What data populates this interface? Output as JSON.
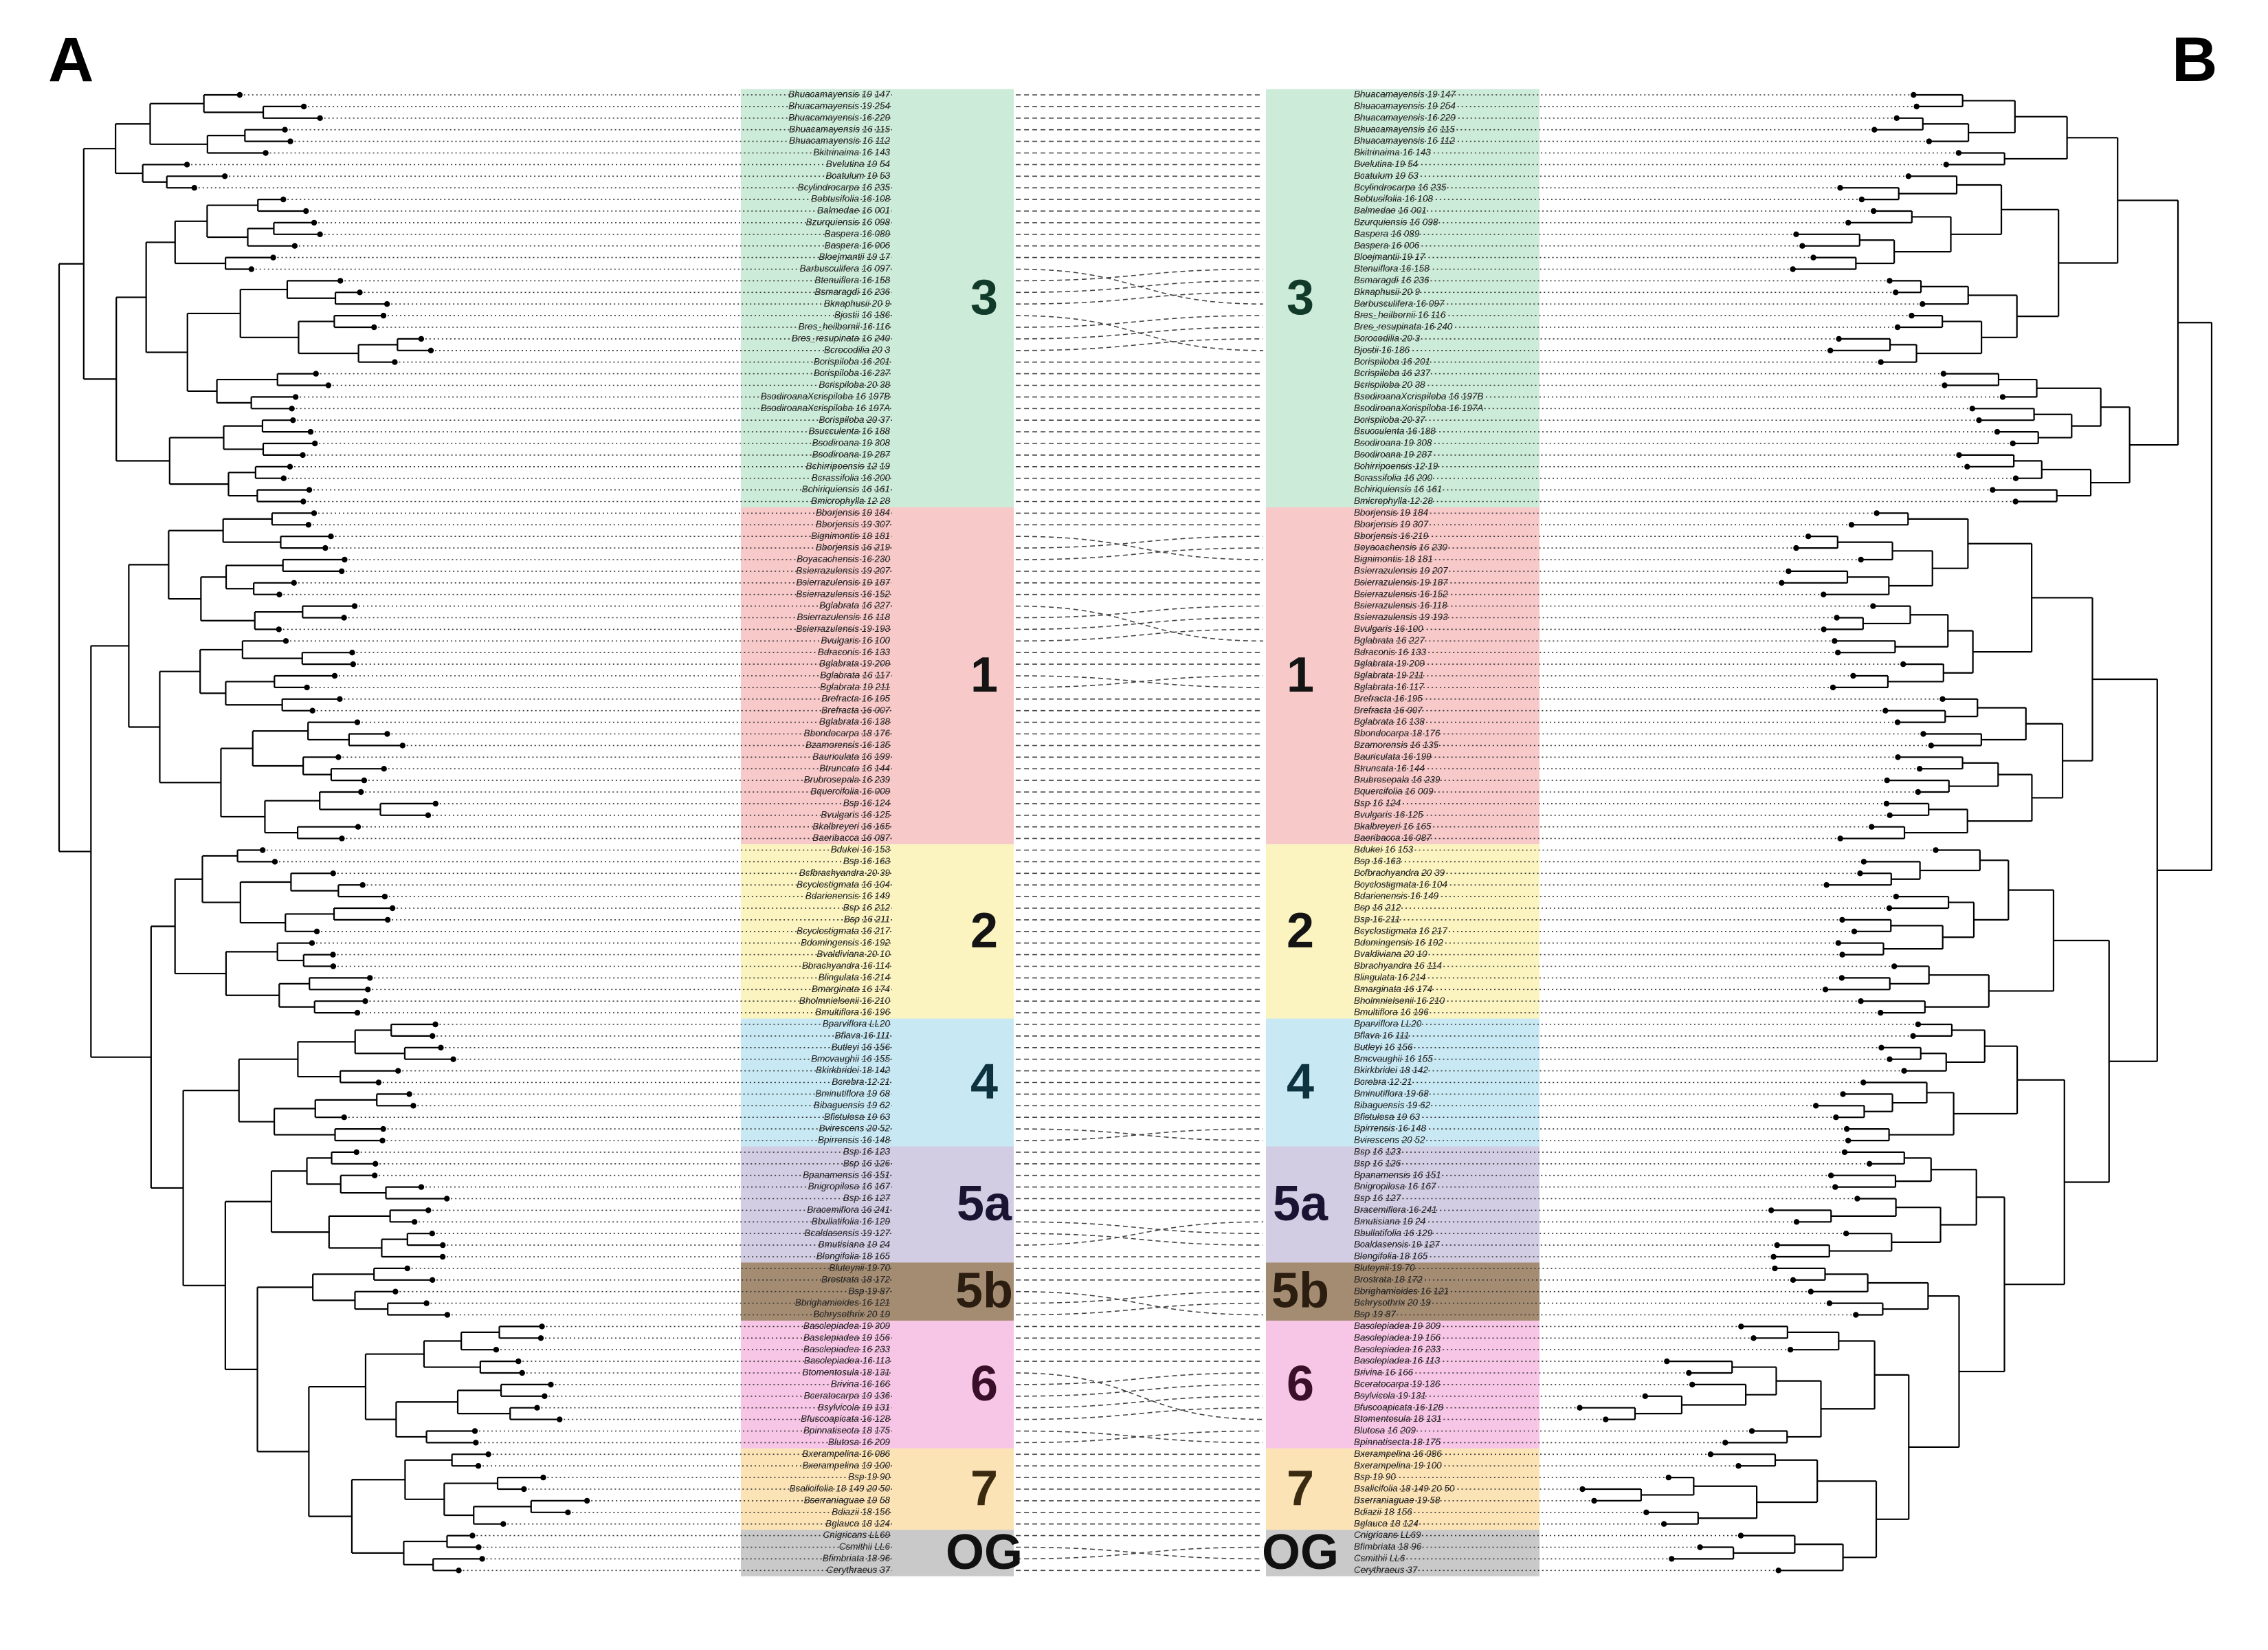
{
  "panels": {
    "left_letter": "A",
    "right_letter": "B"
  },
  "clades": [
    {
      "label": "3",
      "color": "#cdebd9",
      "text_color": "#123a2a"
    },
    {
      "label": "1",
      "color": "#f7c9c9",
      "text_color": "#141414"
    },
    {
      "label": "2",
      "color": "#fbf4c0",
      "text_color": "#141414"
    },
    {
      "label": "4",
      "color": "#c8e9f4",
      "text_color": "#0d3340"
    },
    {
      "label": "5a",
      "color": "#d3cde4",
      "text_color": "#1a1433"
    },
    {
      "label": "5b",
      "color": "#a48c72",
      "text_color": "#2b1d10"
    },
    {
      "label": "6",
      "color": "#f7c6e6",
      "text_color": "#3a0f2a"
    },
    {
      "label": "7",
      "color": "#fbe3b6",
      "text_color": "#3a2a10"
    },
    {
      "label": "OG",
      "color": "#c9c9c9",
      "text_color": "#111111"
    }
  ],
  "left_taxa": [
    [
      "Bhuacamayensis 19 147",
      "Bhuacamayensis 19 254",
      "Bhuacamayensis 16 229",
      "Bhuacamayensis 16 115",
      "Bhuacamayensis 16 112",
      "Bkitrinaima 16 143",
      "Bvelutina 19 54",
      "Bcatulum 19 53",
      "Bcylindrocarpa 16 235",
      "Bobtusifolia 16 108",
      "Balmedae 16 001",
      "Bzurquiensis 16 098",
      "Baspera 16 089",
      "Baspera 16 006",
      "Bloejmantii 19 17",
      "Barbusculifera 16 097",
      "Btenuiflora 16 158",
      "Bsmaragdi 16 236",
      "Bknaphusii 20 9",
      "Bjostii 16 186",
      "Bres_heilbornii 16 116",
      "Bres_resupinata 16 240",
      "Bcrocodilia 20 3",
      "Bcrispiloba 16 201",
      "Bcrispiloba 16 237",
      "Bcrispiloba 20 38",
      "BsodiroanaXcrispiloba 16 197B",
      "BsodiroanaXcrispiloba 16 197A",
      "Bcrispiloba 20 37",
      "Bsucculenta 16 188",
      "Bsodiroana 19 308",
      "Bsodiroana 19 287",
      "Bchirripoensis 12 19",
      "Bcrassifolia 16 200",
      "Bchiriquiensis 16 161",
      "Bmicrophylla 12 28"
    ],
    [
      "Bborjensis 19 184",
      "Bborjensis 19 307",
      "Bignimontis 18 181",
      "Bborjensis 16 219",
      "Boyacachensis 16 230",
      "Bsierrazulensis 19 207",
      "Bsierrazulensis 19 187",
      "Bsierrazulensis 16 152",
      "Bglabrata 16 227",
      "Bsierrazulensis 16 118",
      "Bsierrazulensis 19 193",
      "Bvulgaris 16 100",
      "Bdraconis 16 133",
      "Bglabrata 19 209",
      "Bglabrata 16 117",
      "Bglabrata 19 211",
      "Brefracta 16 195",
      "Brefracta 16 007",
      "Bglabrata 16 138",
      "Bbondocarpa 18 176",
      "Bzamorensis 16 135",
      "Bauriculata 16 199",
      "Btruncata 16 144",
      "Brubrosepala 16 239",
      "Bquercifolia 16 009",
      "Bsp 16 124",
      "Bvulgaris 16 125",
      "Bkalbreyeri 16 165",
      "Baeribacca 16 087"
    ],
    [
      "Bdukei 16 153",
      "Bsp 16 163",
      "Bcfbrachyandra 20 39",
      "Bcyclostigmata 16 104",
      "Bdarienensis 16 149",
      "Bsp 16 212",
      "Bsp 16 211",
      "Bcyclostigmata 16 217",
      "Bdomingensis 16 192",
      "Bvaldiviana 20 10",
      "Bbrachyandra 16 114",
      "Blingulata 16 214",
      "Bmarginata 16 174",
      "Bholmnielsenii 16 210",
      "Bmultiflora 16 196"
    ],
    [
      "Bparviflora LL20",
      "Bflava 16 111",
      "Butleyi 16 156",
      "Bmcvaughii 16 155",
      "Bkirkbridei 18 142",
      "Bcrebra 12 21",
      "Bminutiflora 19 68",
      "Bibaguensis 19 62",
      "Bfistulosa 19 63",
      "Bvirescens 20 52",
      "Bpirrensis 16 148"
    ],
    [
      "Bsp 16 123",
      "Bsp 16 126",
      "Bpanamensis 16 151",
      "Bnigropilosa 16 167",
      "Bsp 16 127",
      "Bracemiflora 16 241",
      "Bbullatifolia 16 129",
      "Bcaldasensis 19 127",
      "Bmutisiana 19 24",
      "Blongifolia 18 165"
    ],
    [
      "Bluteynii 19 70",
      "Brostrata 18 172",
      "Bsp 19 87",
      "Bbrighamioides 16 121",
      "Bchrysothrix 20 19"
    ],
    [
      "Basclepiadea 19 309",
      "Basclepiadea 19 156",
      "Basclepiadea 16 233",
      "Basclepiadea 16 113",
      "Btomentosula 18 131",
      "Brivina 16 166",
      "Bceratocarpa 19 136",
      "Bsylvicola 19 131",
      "Bfuscoapicata 16 128",
      "Bpinnatisecta 18 175",
      "Blutosa 16 209"
    ],
    [
      "Bxerampelina 16 086",
      "Bxerampelina 19 100",
      "Bsp 19 90",
      "Bsalicifolia 18 149 20 50",
      "Bserraniaguae 19 58",
      "Bdiazii 18 156",
      "Bglauca 18 124"
    ],
    [
      "Cnigricans LL69",
      "Csmithii LL6",
      "Bfimbriata 18 96",
      "Cerythraeus 37"
    ]
  ],
  "right_taxa": [
    [
      "Bhuacamayensis 19 147",
      "Bhuacamayensis 19 254",
      "Bhuacamayensis 16 229",
      "Bhuacamayensis 16 115",
      "Bhuacamayensis 16 112",
      "Bkitrinaima 16 143",
      "Bvelutina 19 54",
      "Bcatulum 19 53",
      "Bcylindrocarpa 16 235",
      "Bobtusifolia 16 108",
      "Balmedae 16 001",
      "Bzurquiensis 16 098",
      "Baspera 16 089",
      "Baspera 16 006",
      "Bloejmantii 19 17",
      "Btenuiflora 16 158",
      "Bsmaragdi 16 236",
      "Bknaphusii 20 9",
      "Barbusculifera 16 097",
      "Bres_heilbornii 16 116",
      "Bres_resupinata 16 240",
      "Bcrocodilia 20 3",
      "Bjostii 16 186",
      "Bcrispiloba 16 201",
      "Bcrispiloba 16 237",
      "Bcrispiloba 20 38",
      "BsodiroanaXcrispiloba 16 197B",
      "BsodiroanaXcrispiloba 16 197A",
      "Bcrispiloba 20 37",
      "Bsucculenta 16 188",
      "Bsodiroana 19 308",
      "Bsodiroana 19 287",
      "Bchirripoensis 12 19",
      "Bcrassifolia 16 200",
      "Bchiriquiensis 16 161",
      "Bmicrophylla 12 28"
    ],
    [
      "Bborjensis 19 184",
      "Bborjensis 19 307",
      "Bborjensis 16 219",
      "Boyacachensis 16 230",
      "Bignimontis 18 181",
      "Bsierrazulensis 19 207",
      "Bsierrazulensis 19 187",
      "Bsierrazulensis 16 152",
      "Bsierrazulensis 16 118",
      "Bsierrazulensis 19 193",
      "Bvulgaris 16 100",
      "Bglabrata 16 227",
      "Bdraconis 16 133",
      "Bglabrata 19 209",
      "Bglabrata 19 211",
      "Bglabrata 16 117",
      "Brefracta 16 195",
      "Brefracta 16 007",
      "Bglabrata 16 138",
      "Bbondocarpa 18 176",
      "Bzamorensis 16 135",
      "Bauriculata 16 199",
      "Btruncata 16 144",
      "Brubrosepala 16 239",
      "Bquercifolia 16 009",
      "Bsp 16 124",
      "Bvulgaris 16 125",
      "Bkalbreyeri 16 165",
      "Baeribacca 16 087"
    ],
    [
      "Bdukei 16 153",
      "Bsp 16 163",
      "Bcfbrachyandra 20 39",
      "Bcyclostigmata 16 104",
      "Bdarienensis 16 149",
      "Bsp 16 212",
      "Bsp 16 211",
      "Bcyclostigmata 16 217",
      "Bdomingensis 16 192",
      "Bvaldiviana 20 10",
      "Bbrachyandra 16 114",
      "Blingulata 16 214",
      "Bmarginata 16 174",
      "Bholmnielsenii 16 210",
      "Bmultiflora 16 196"
    ],
    [
      "Bparviflora LL20",
      "Bflava 16 111",
      "Butleyi 16 156",
      "Bmcvaughii 16 155",
      "Bkirkbridei 18 142",
      "Bcrebra 12 21",
      "Bminutiflora 19 68",
      "Bibaguensis 19 62",
      "Bfistulosa 19 63",
      "Bpirrensis 16 148",
      "Bvirescens 20 52"
    ],
    [
      "Bsp 16 123",
      "Bsp 16 126",
      "Bpanamensis 16 151",
      "Bnigropilosa 16 167",
      "Bsp 16 127",
      "Bracemiflora 16 241",
      "Bmutisiana 19 24",
      "Bbullatifolia 16 129",
      "Bcaldasensis 19 127",
      "Blongifolia 18 165"
    ],
    [
      "Bluteynii 19 70",
      "Brostrata 18 172",
      "Bbrighamioides 16 121",
      "Bchrysothrix 20 19",
      "Bsp 19 87"
    ],
    [
      "Basclepiadea 19 309",
      "Basclepiadea 19 156",
      "Basclepiadea 16 233",
      "Basclepiadea 16 113",
      "Brivina 16 166",
      "Bceratocarpa 19 136",
      "Bsylvicola 19 131",
      "Bfuscoapicata 16 128",
      "Btomentosula 18 131",
      "Blutosa 16 209",
      "Bpinnatisecta 18 175"
    ],
    [
      "Bxerampelina 16 086",
      "Bxerampelina 19 100",
      "Bsp 19 90",
      "Bsalicifolia 18 149 20 50",
      "Bserraniaguae 19 58",
      "Bdiazii 18 156",
      "Bglauca 18 124"
    ],
    [
      "Cnigricans LL69",
      "Bfimbriata 18 96",
      "Csmithii LL6",
      "Cerythraeus 37"
    ]
  ]
}
